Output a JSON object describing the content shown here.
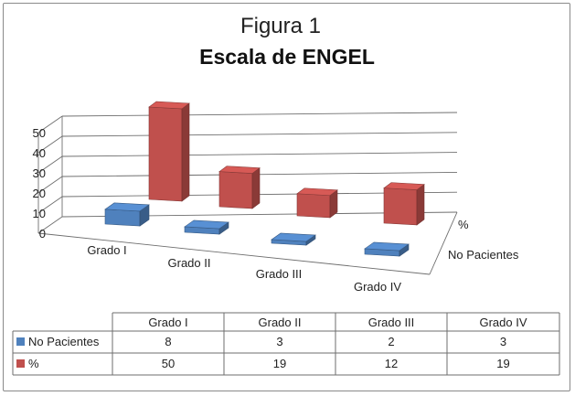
{
  "chart_data": {
    "type": "bar",
    "title": "Figura 1",
    "subtitle": "Escala de ENGEL",
    "categories": [
      "Grado I",
      "Grado II",
      "Grado III",
      "Grado IV"
    ],
    "series": [
      {
        "name": "No Pacientes",
        "values": [
          8,
          3,
          2,
          3
        ],
        "color": "#4f81bd"
      },
      {
        "name": "%",
        "values": [
          50,
          19,
          12,
          19
        ],
        "color": "#c0504d"
      }
    ],
    "y_ticks": [
      "0",
      "10",
      "20",
      "30",
      "40",
      "50"
    ],
    "ylim": [
      0,
      50
    ],
    "grid": true,
    "view": "3d-columns",
    "data_table": true
  }
}
